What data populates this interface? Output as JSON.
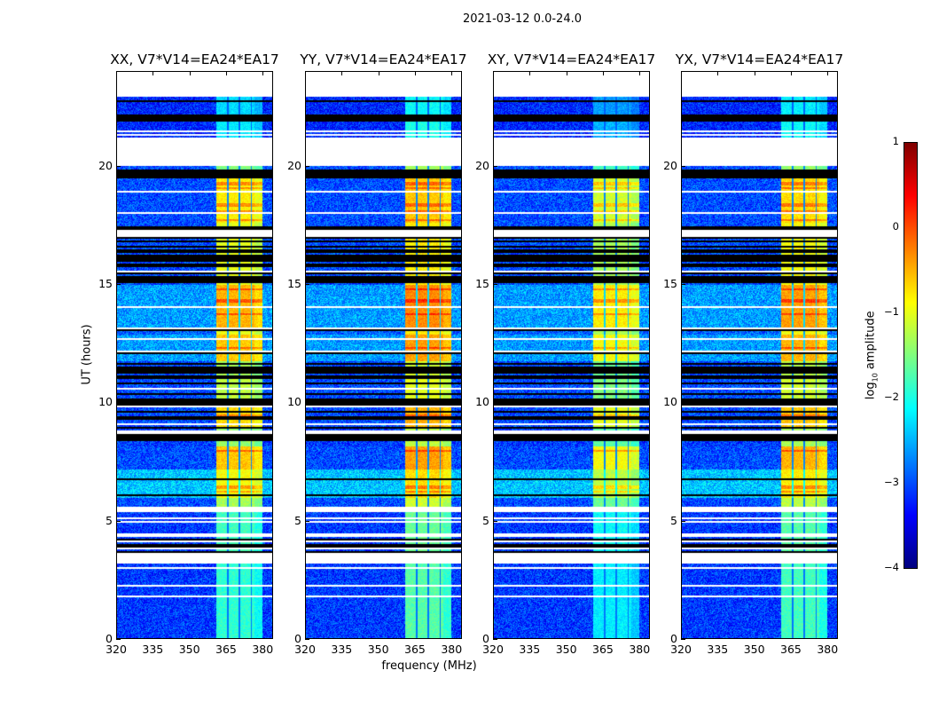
{
  "suptitle": "2021-03-12 0.0-24.0",
  "chart_data": {
    "type": "heatmap",
    "title": "2021-03-12 0.0-24.0",
    "xlabel": "frequency (MHz)",
    "ylabel": "UT (hours)",
    "xlim": [
      320,
      384.25
    ],
    "ylim": [
      0,
      24
    ],
    "xticks": [
      "320",
      "335",
      "350",
      "365",
      "380"
    ],
    "yticks": [
      "0",
      "5",
      "10",
      "15",
      "20"
    ],
    "colorbar": {
      "label_main": "log",
      "label_sub": "10",
      "label_rest": " amplitude",
      "range": [
        -4,
        1
      ],
      "ticks": [
        "1",
        "0",
        "−1",
        "−2",
        "−3",
        "−4"
      ],
      "colormap": "jet"
    },
    "band": {
      "start_mhz": 360.5,
      "end_mhz": 379.5,
      "subband_edges_mhz": [
        365.3,
        370.0,
        374.8
      ]
    },
    "panels": [
      {
        "title": "XX, V7*V14=EA24*EA17",
        "band_offset": 0.0
      },
      {
        "title": "YY, V7*V14=EA24*EA17",
        "band_offset": 0.2
      },
      {
        "title": "XY, V7*V14=EA24*EA17",
        "band_offset": -0.3
      },
      {
        "title": "YX, V7*V14=EA24*EA17",
        "band_offset": 0.1
      }
    ],
    "segments": [
      {
        "from": 22.95,
        "to": 24.0,
        "type": "blank"
      },
      {
        "from": 22.6,
        "to": 22.95,
        "type": "data",
        "bg": -3.2,
        "band": -2.3
      },
      {
        "from": 21.9,
        "to": 22.6,
        "type": "striped",
        "bg": -3.2,
        "band": -2.3
      },
      {
        "from": 21.4,
        "to": 21.9,
        "type": "data",
        "bg": -3.2,
        "band": -2.2
      },
      {
        "from": 21.3,
        "to": 21.4,
        "type": "blank"
      },
      {
        "from": 21.2,
        "to": 21.3,
        "type": "data",
        "bg": -3.2,
        "band": -2.2
      },
      {
        "from": 20.0,
        "to": 21.2,
        "type": "blank"
      },
      {
        "from": 19.85,
        "to": 20.0,
        "type": "data",
        "bg": -3.0,
        "band": -1.5
      },
      {
        "from": 19.5,
        "to": 19.85,
        "type": "flag"
      },
      {
        "from": 17.6,
        "to": 19.5,
        "type": "data",
        "bg": -3.0,
        "band": -0.8
      },
      {
        "from": 17.3,
        "to": 17.6,
        "type": "striped",
        "bg": -3.0,
        "band": -1.0
      },
      {
        "from": 17.0,
        "to": 17.3,
        "type": "blank"
      },
      {
        "from": 15.0,
        "to": 17.0,
        "type": "striped",
        "bg": -3.0,
        "band": -1.0
      },
      {
        "from": 13.2,
        "to": 15.0,
        "type": "data",
        "bg": -2.6,
        "band": -0.5
      },
      {
        "from": 12.9,
        "to": 13.2,
        "type": "striped",
        "bg": -2.9,
        "band": -1.0
      },
      {
        "from": 11.8,
        "to": 12.9,
        "type": "data",
        "bg": -2.6,
        "band": -0.6
      },
      {
        "from": 11.2,
        "to": 11.8,
        "type": "striped",
        "bg": -3.0,
        "band": -1.3
      },
      {
        "from": 10.0,
        "to": 11.2,
        "type": "striped",
        "bg": -3.0,
        "band": -1.2
      },
      {
        "from": 9.0,
        "to": 10.0,
        "type": "striped",
        "bg": -3.0,
        "band": -0.7
      },
      {
        "from": 8.2,
        "to": 9.0,
        "type": "striped",
        "bg": -3.1,
        "band": -1.4
      },
      {
        "from": 7.2,
        "to": 8.2,
        "type": "data",
        "bg": -3.0,
        "band": -0.6
      },
      {
        "from": 6.0,
        "to": 7.2,
        "type": "data",
        "bg": -2.4,
        "band": -0.9
      },
      {
        "from": 5.6,
        "to": 6.0,
        "type": "data",
        "bg": -3.0,
        "band": -1.3
      },
      {
        "from": 5.4,
        "to": 5.6,
        "type": "blank"
      },
      {
        "from": 4.5,
        "to": 5.4,
        "type": "data",
        "bg": -3.1,
        "band": -1.8
      },
      {
        "from": 3.7,
        "to": 4.5,
        "type": "striped",
        "bg": -3.1,
        "band": -1.8
      },
      {
        "from": 3.3,
        "to": 3.7,
        "type": "blank"
      },
      {
        "from": 0.0,
        "to": 3.3,
        "type": "data",
        "bg": -3.1,
        "band": -1.9
      }
    ]
  }
}
